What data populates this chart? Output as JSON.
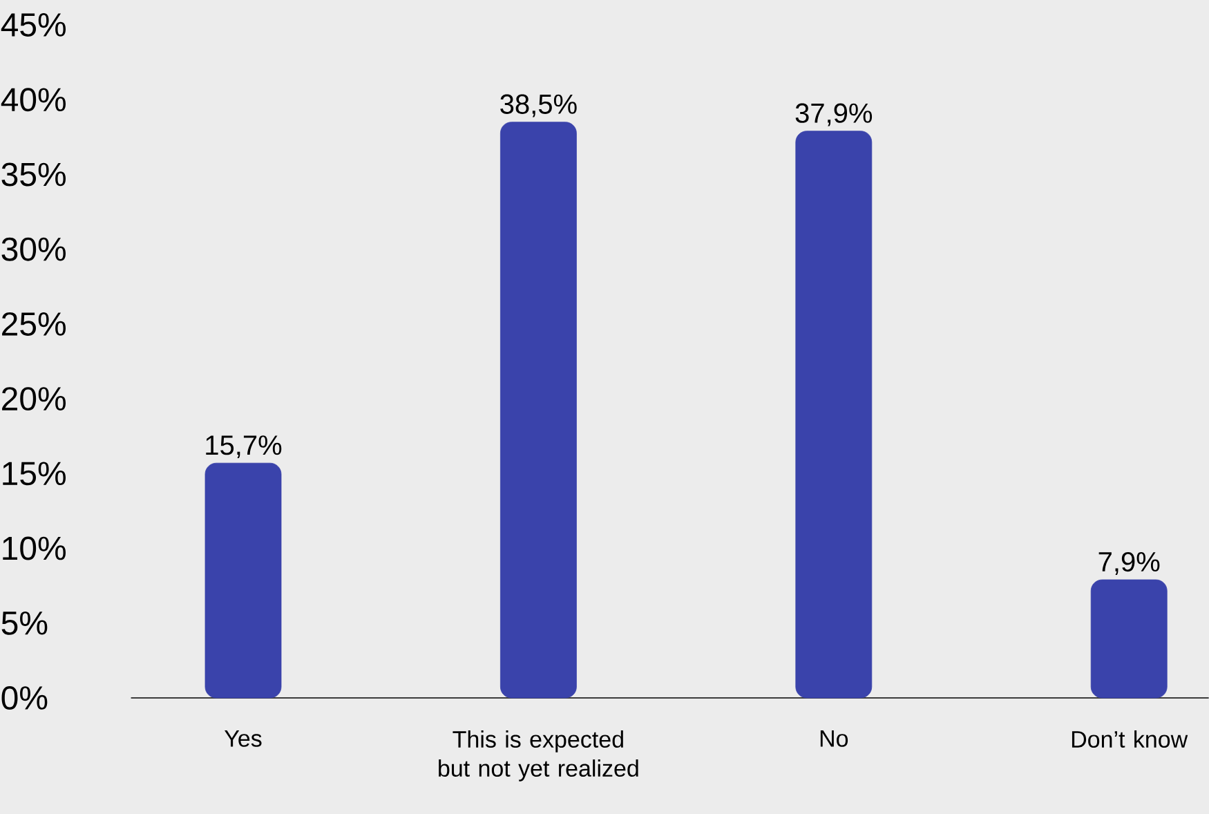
{
  "chart_data": {
    "type": "bar",
    "categories": [
      "Yes",
      "This is expected but not yet realized",
      "No",
      "Don’t know"
    ],
    "values": [
      15.7,
      38.5,
      37.9,
      7.9
    ],
    "value_labels": [
      "15,7%",
      "38,5%",
      "37,9%",
      "7,9%"
    ],
    "color": "#3a43ab",
    "ylim": [
      0,
      45
    ],
    "yticks": [
      {
        "value": 0,
        "label": "0%"
      },
      {
        "value": 5,
        "label": "5%"
      },
      {
        "value": 10,
        "label": "10%"
      },
      {
        "value": 15,
        "label": "15%"
      },
      {
        "value": 20,
        "label": "20%"
      },
      {
        "value": 25,
        "label": "25%"
      },
      {
        "value": 30,
        "label": "30%"
      },
      {
        "value": 35,
        "label": "35%"
      },
      {
        "value": 40,
        "label": "40%"
      },
      {
        "value": 45,
        "label": "45%"
      }
    ]
  }
}
